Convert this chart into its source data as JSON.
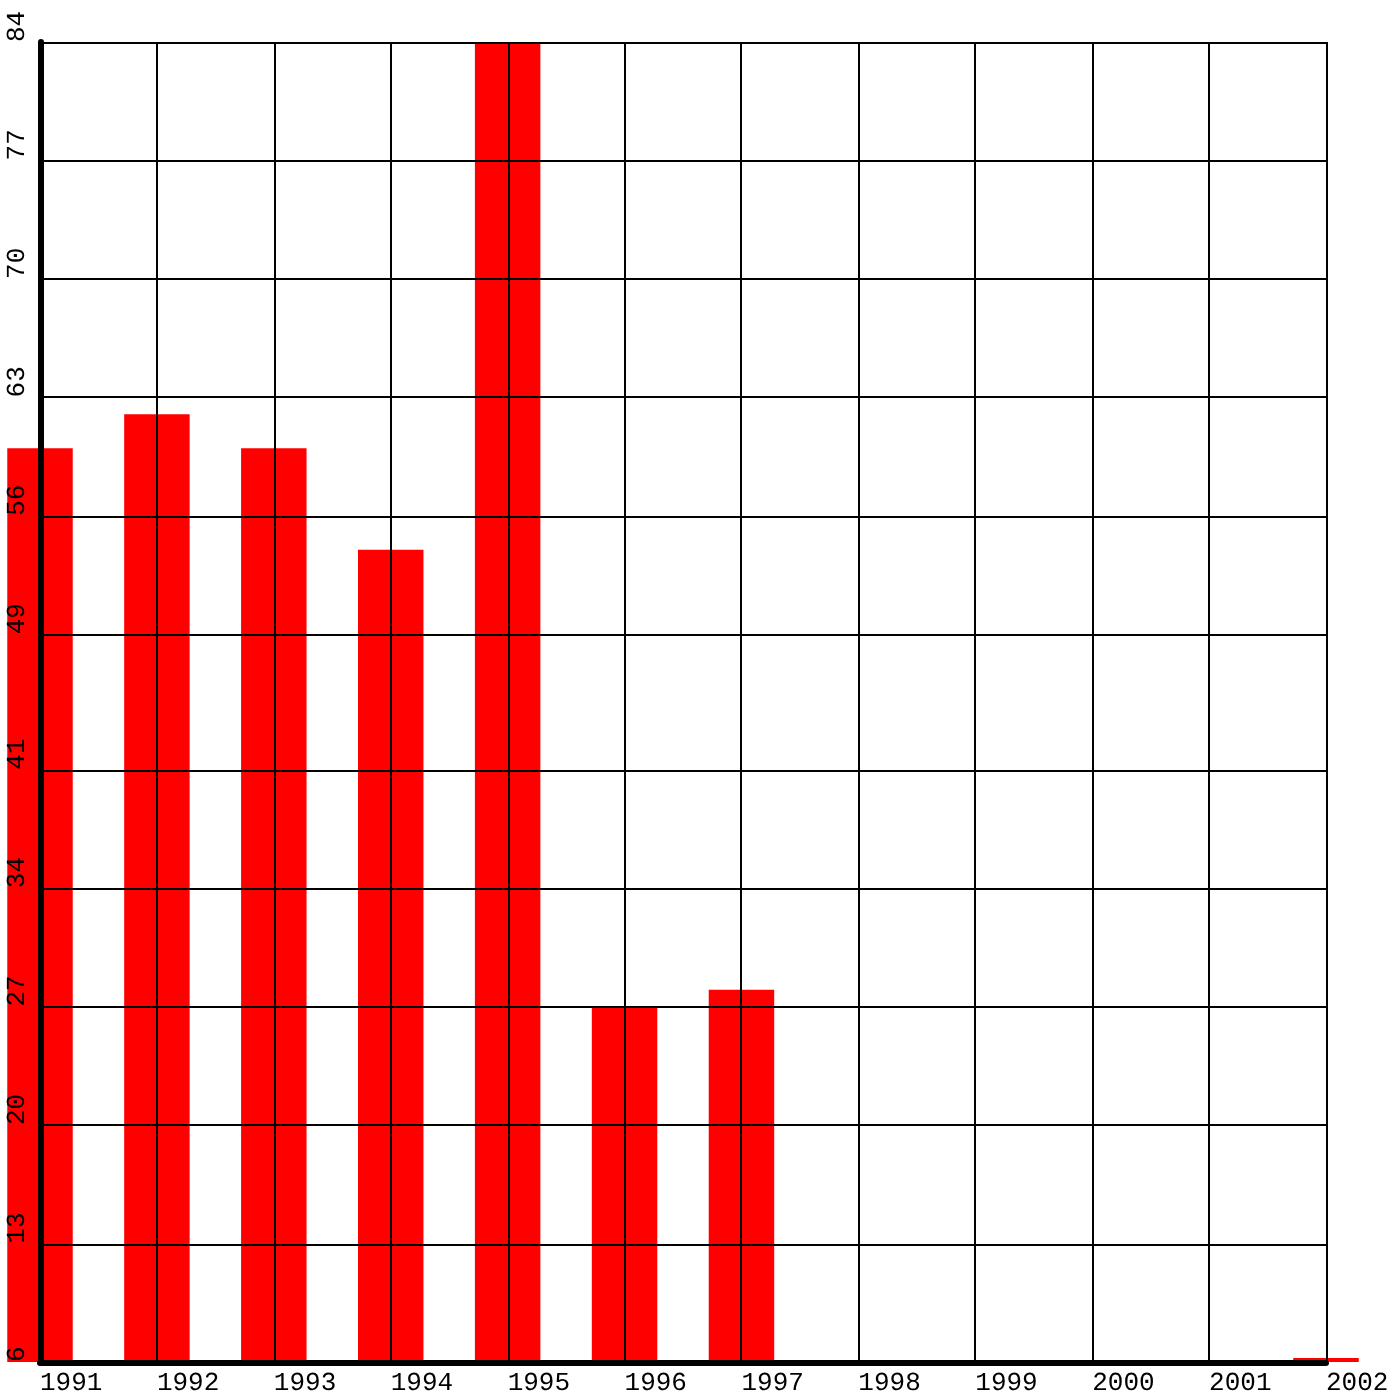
{
  "chart_data": {
    "type": "bar",
    "categories": [
      "1991",
      "1992",
      "1993",
      "1994",
      "1995",
      "1996",
      "1997",
      "1998",
      "1999",
      "2000",
      "2001",
      "2002"
    ],
    "values": [
      60,
      62,
      60,
      54,
      84,
      27,
      28,
      null,
      null,
      null,
      null,
      6
    ],
    "color": "#ff0000",
    "ylim": [
      6,
      84
    ],
    "yticks": [
      6,
      13,
      20,
      27,
      34,
      41,
      49,
      56,
      63,
      70,
      77,
      84
    ],
    "grid": true
  }
}
